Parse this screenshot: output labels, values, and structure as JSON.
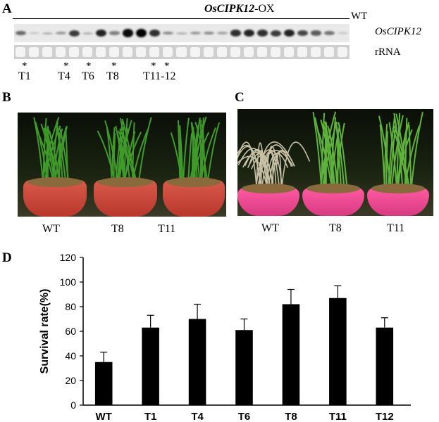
{
  "panel_a": {
    "letter": "A",
    "overexpression_label_gene": "OsCIPK12",
    "overexpression_label_suffix": "-OX",
    "wt_label": "WT",
    "gene_label": "OsCIPK12",
    "rrna_label": "rRNA",
    "lines": [
      "T1",
      "T4",
      "T6",
      "T8",
      "T11-12"
    ],
    "asterisk": "*"
  },
  "panel_b": {
    "letter": "B",
    "labels": [
      "WT",
      "T8",
      "T11"
    ]
  },
  "panel_c": {
    "letter": "C",
    "labels": [
      "WT",
      "T8",
      "T11"
    ]
  },
  "panel_d": {
    "letter": "D"
  },
  "colors": {
    "bar": "#000000",
    "leaf_green": "#3f9a2a",
    "dry_leaf": "#c8c0a6",
    "pot_red": "#c8402f",
    "pot_pink": "#ff5aa3"
  },
  "chart_data": {
    "type": "bar",
    "categories": [
      "WT",
      "T1",
      "T4",
      "T6",
      "T8",
      "T11",
      "T12"
    ],
    "values": [
      35,
      63,
      70,
      61,
      82,
      87,
      63
    ],
    "errors": [
      8,
      10,
      12,
      9,
      12,
      10,
      8
    ],
    "ylabel": "Survival rate(%)",
    "ylim": [
      0,
      120
    ],
    "yticks": [
      0,
      20,
      40,
      60,
      80,
      100,
      120
    ],
    "grid": false
  }
}
